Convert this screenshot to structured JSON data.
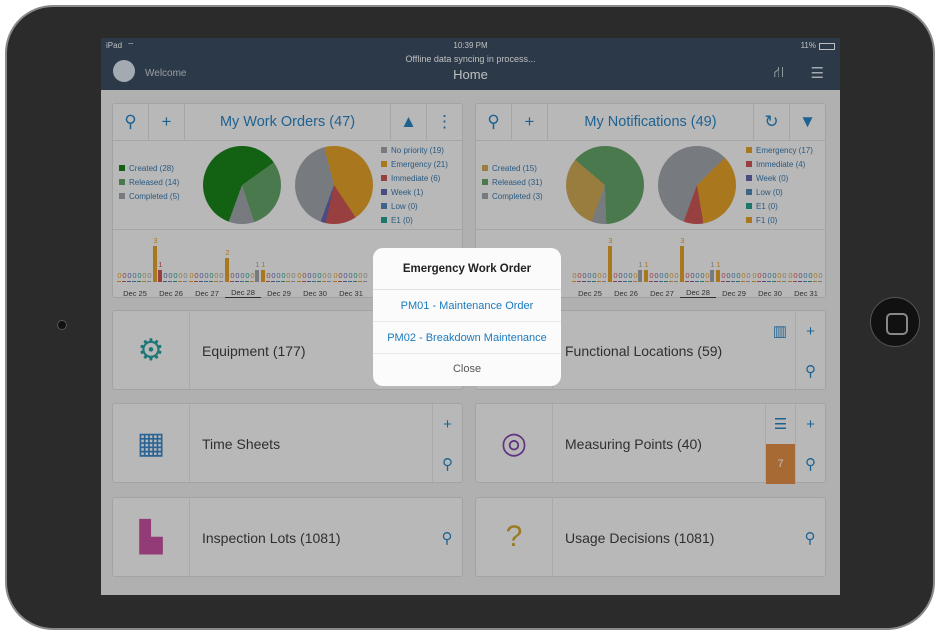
{
  "status_bar": {
    "device": "iPad",
    "time": "10:39 PM",
    "battery": "11%"
  },
  "header": {
    "sync_message": "Offline data syncing in process...",
    "title": "Home",
    "welcome": "Welcome"
  },
  "colors": {
    "header": "#2f4157",
    "accent": "#1a7bbf"
  },
  "work_orders": {
    "title": "My Work Orders (47)",
    "status_legend": [
      {
        "label": "Created (28)",
        "value": 28,
        "color": "#0b7a0b"
      },
      {
        "label": "Released (14)",
        "value": 14,
        "color": "#5a9c5e"
      },
      {
        "label": "Completed (5)",
        "value": 5,
        "color": "#9aa0a6"
      }
    ],
    "priority_legend": [
      {
        "label": "No priority (19)",
        "value": 19,
        "color": "#9aa0a6"
      },
      {
        "label": "Emergency (21)",
        "value": 21,
        "color": "#e09a1a"
      },
      {
        "label": "Immediate (6)",
        "value": 6,
        "color": "#c94a4a"
      },
      {
        "label": "Week (1)",
        "value": 1,
        "color": "#5b5ba8"
      },
      {
        "label": "Low (0)",
        "value": 0,
        "color": "#4a7fb5"
      },
      {
        "label": "E1 (0)",
        "value": 0,
        "color": "#1a9a8a"
      }
    ],
    "days": [
      {
        "label": "Dec 25",
        "values": [
          0,
          0,
          0,
          0,
          0,
          0,
          0
        ]
      },
      {
        "label": "Dec 26",
        "values": [
          3,
          1,
          0,
          0,
          0,
          0,
          0
        ]
      },
      {
        "label": "Dec 27",
        "values": [
          0,
          0,
          0,
          0,
          0,
          0,
          0
        ]
      },
      {
        "label": "Dec 28",
        "values": [
          2,
          0,
          0,
          0,
          0,
          0,
          1
        ],
        "selected": true
      },
      {
        "label": "Dec 29",
        "values": [
          1,
          0,
          0,
          0,
          0,
          0,
          0
        ]
      },
      {
        "label": "Dec 30",
        "values": [
          0,
          0,
          0,
          0,
          0,
          0,
          0
        ]
      },
      {
        "label": "Dec 31",
        "values": [
          0,
          0,
          0,
          0,
          0,
          0,
          0
        ]
      }
    ]
  },
  "notifications": {
    "title": "My Notifications (49)",
    "status_legend": [
      {
        "label": "Created (15)",
        "value": 15,
        "color": "#c9a24a"
      },
      {
        "label": "Released (31)",
        "value": 31,
        "color": "#5a9c5e"
      },
      {
        "label": "Completed (3)",
        "value": 3,
        "color": "#9aa0a6"
      }
    ],
    "priority_legend": [
      {
        "label": "Emergency (17)",
        "value": 17,
        "color": "#e09a1a"
      },
      {
        "label": "Immediate (4)",
        "value": 4,
        "color": "#c94a4a"
      },
      {
        "label": "Week (0)",
        "value": 0,
        "color": "#5b5ba8"
      },
      {
        "label": "Low (0)",
        "value": 0,
        "color": "#4a7fb5"
      },
      {
        "label": "E1 (0)",
        "value": 0,
        "color": "#1a9a8a"
      },
      {
        "label": "F1 (0)",
        "value": 0,
        "color": "#e09a1a"
      }
    ],
    "pie_gray": 28,
    "days": [
      {
        "label": "Dec 25",
        "values": [
          0,
          0,
          0,
          0,
          0,
          0,
          0
        ]
      },
      {
        "label": "Dec 26",
        "values": [
          3,
          0,
          0,
          0,
          0,
          0,
          1
        ]
      },
      {
        "label": "Dec 27",
        "values": [
          1,
          0,
          0,
          0,
          0,
          0,
          0
        ]
      },
      {
        "label": "Dec 28",
        "values": [
          3,
          0,
          0,
          0,
          0,
          0,
          1
        ],
        "selected": true
      },
      {
        "label": "Dec 29",
        "values": [
          1,
          0,
          0,
          0,
          0,
          0,
          0
        ]
      },
      {
        "label": "Dec 30",
        "values": [
          0,
          0,
          0,
          0,
          0,
          0,
          0
        ]
      },
      {
        "label": "Dec 31",
        "values": [
          0,
          0,
          0,
          0,
          0,
          0,
          0
        ]
      }
    ]
  },
  "bar_colors": [
    "#e09a1a",
    "#c94a4a",
    "#5b5ba8",
    "#4a7fb5",
    "#1a9a8a",
    "#e09a1a",
    "#9aa0a6"
  ],
  "tiles": {
    "equipment": "Equipment (177)",
    "functional_locations": "Functional Locations (59)",
    "time_sheets": "Time Sheets",
    "measuring_points": "Measuring Points (40)",
    "measuring_badge": "7",
    "inspection_lots": "Inspection Lots (1081)",
    "usage_decisions": "Usage Decisions (1081)"
  },
  "dialog": {
    "title": "Emergency Work Order",
    "options": [
      "PM01 - Maintenance Order",
      "PM02 - Breakdown Maintenance"
    ],
    "close": "Close"
  }
}
